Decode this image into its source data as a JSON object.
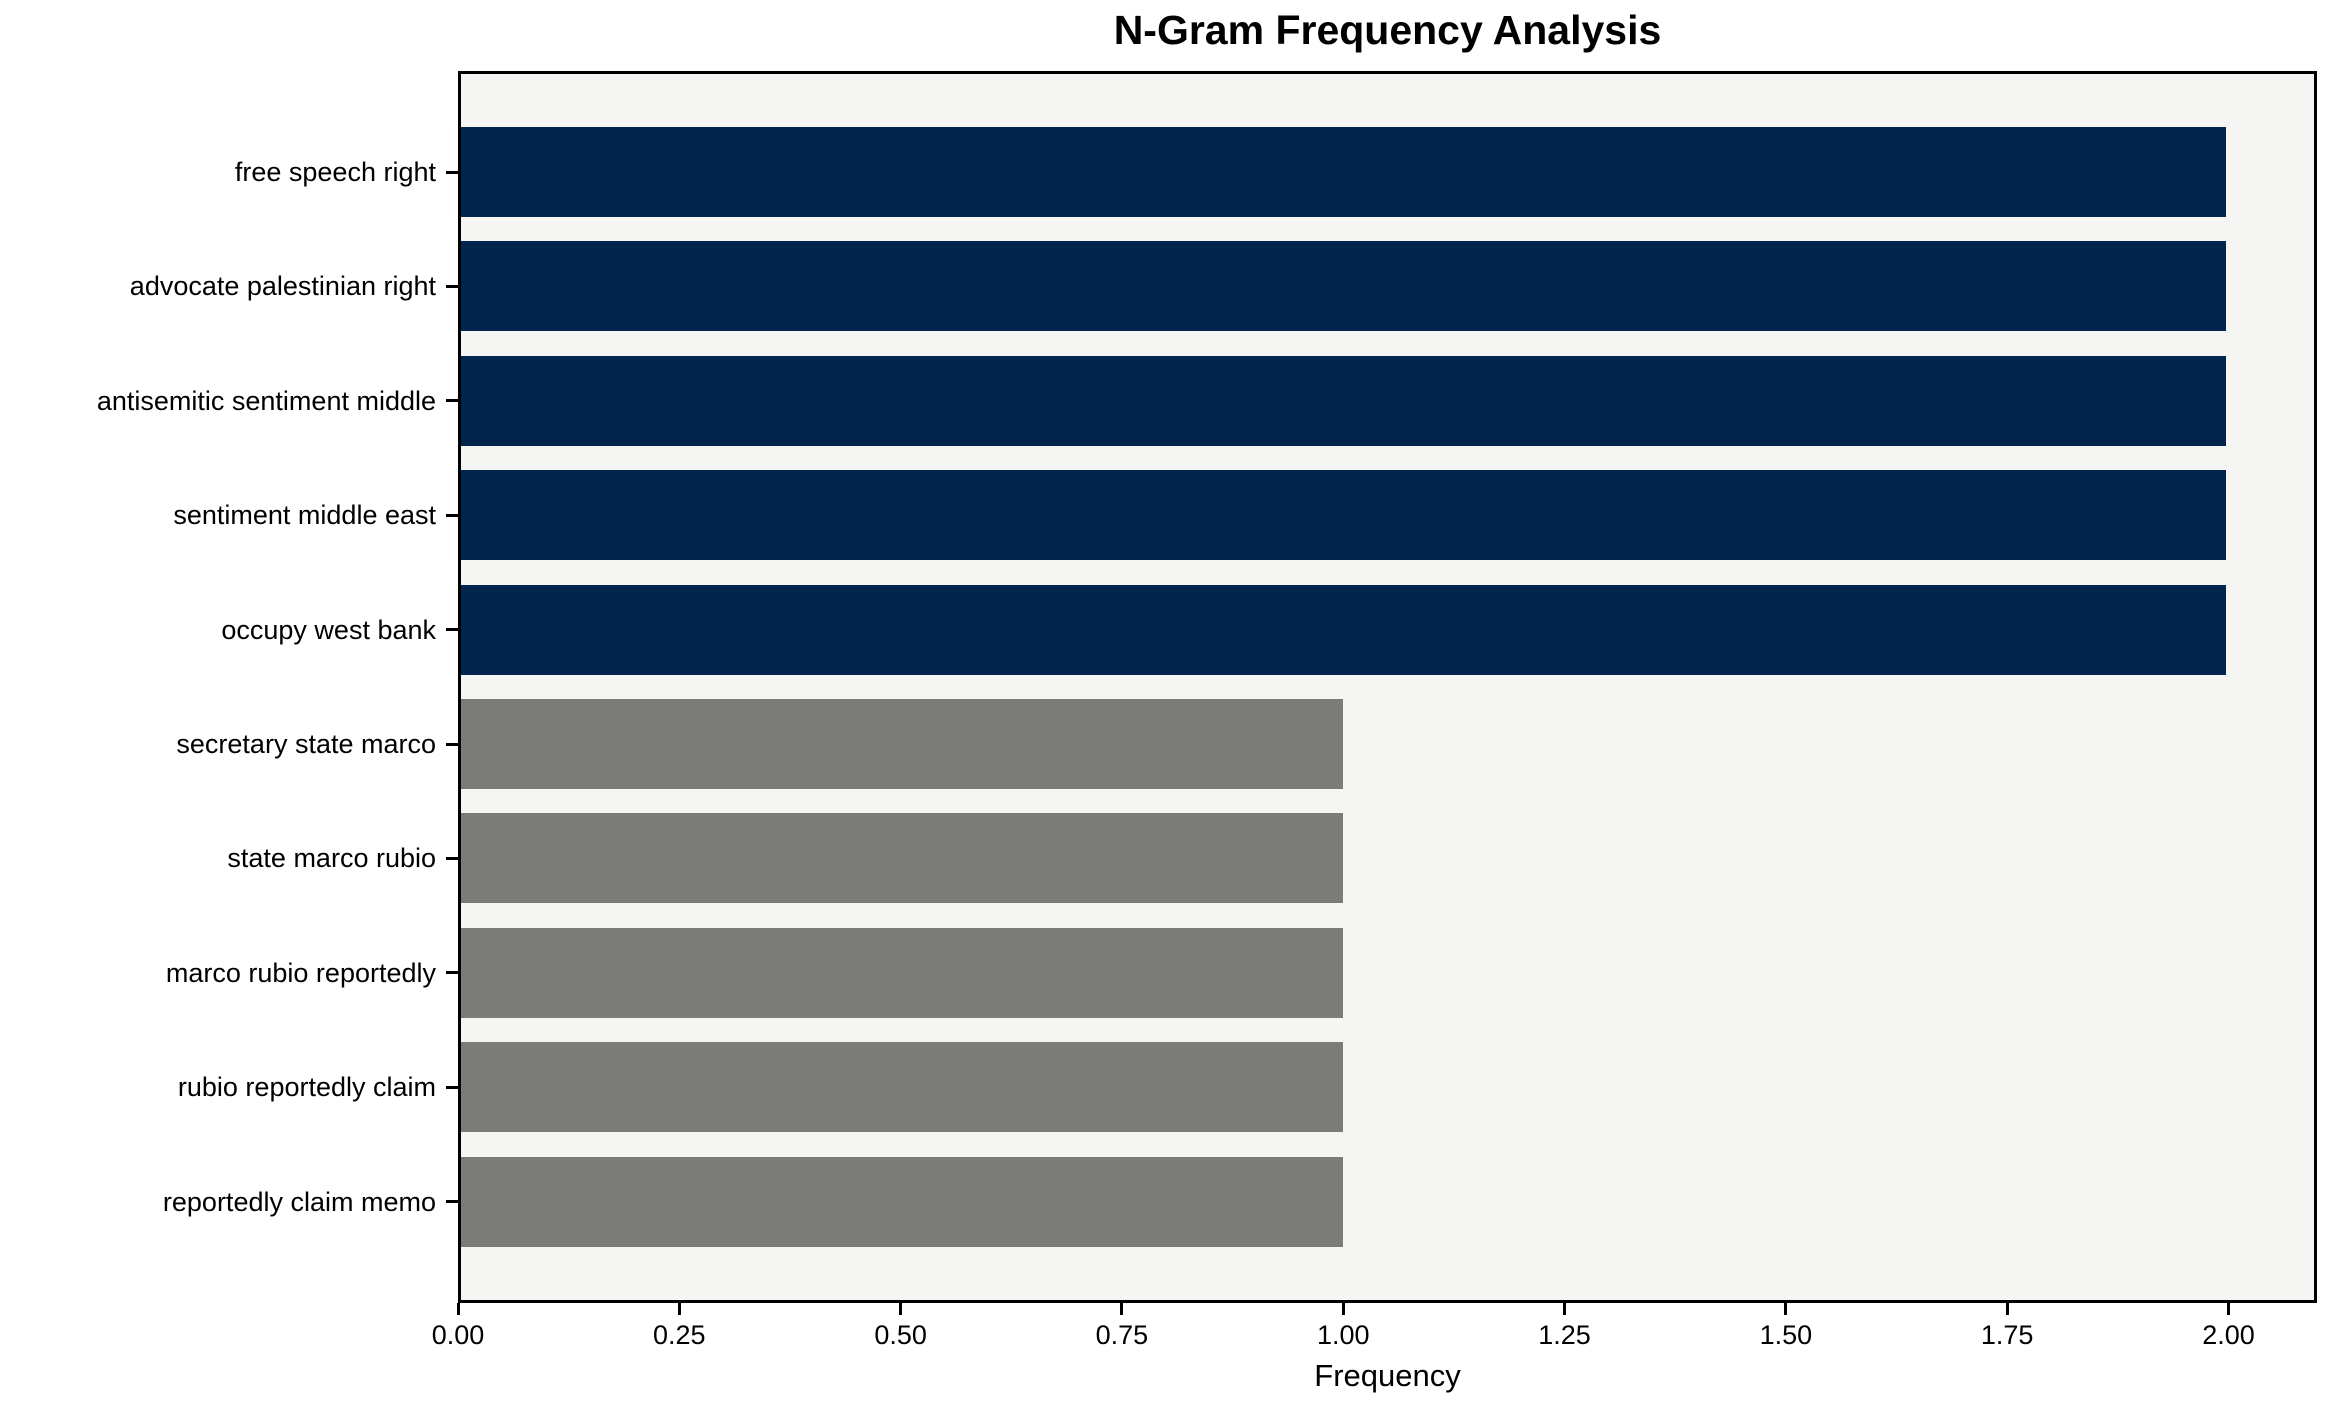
{
  "chart_data": {
    "type": "bar",
    "orientation": "horizontal",
    "title": "N-Gram Frequency Analysis",
    "xlabel": "Frequency",
    "ylabel": "",
    "categories": [
      "free speech right",
      "advocate palestinian right",
      "antisemitic sentiment middle",
      "sentiment middle east",
      "occupy west bank",
      "secretary state marco",
      "state marco rubio",
      "marco rubio reportedly",
      "rubio reportedly claim",
      "reportedly claim memo"
    ],
    "values": [
      2,
      2,
      2,
      2,
      2,
      1,
      1,
      1,
      1,
      1
    ],
    "bar_colors": [
      "#02254d",
      "#02254d",
      "#02254d",
      "#02254d",
      "#02254d",
      "#7b7b78",
      "#7b7b78",
      "#7b7b78",
      "#7b7b78",
      "#7b7b78"
    ],
    "xlim": [
      0,
      2.1
    ],
    "xticks": [
      "0.00",
      "0.25",
      "0.50",
      "0.75",
      "1.00",
      "1.25",
      "1.50",
      "1.75",
      "2.00"
    ],
    "xtick_values": [
      0,
      0.25,
      0.5,
      0.75,
      1.0,
      1.25,
      1.5,
      1.75,
      2.0
    ],
    "grid": false,
    "legend": null,
    "colors": {
      "high_frequency_bar": "#02254d",
      "low_frequency_bar": "#7b7b78",
      "plot_background": "#f5f5f4",
      "figure_background": "#ffffff",
      "spine": "#000000",
      "text": "#000000"
    }
  }
}
